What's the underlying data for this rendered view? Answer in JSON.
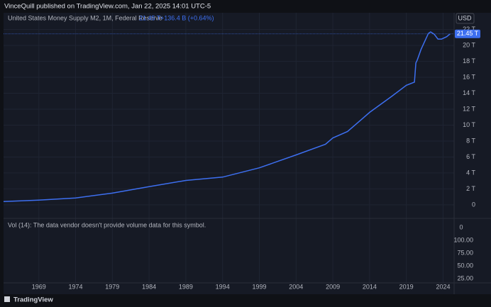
{
  "header": {
    "text": "VinceQuill published on TradingView.com, Jan 22, 2025 14:01 UTC-5"
  },
  "chart_data": {
    "type": "line",
    "currency": "USD",
    "legend": {
      "name": "United States Money Supply M2, 1M, Federal Reserve",
      "last": "21.45 T",
      "change": "+136.4 B (+0.64%)"
    },
    "x": [
      1964.2,
      1969,
      1974,
      1979,
      1984,
      1989,
      1994,
      1999,
      2004,
      2008,
      2009,
      2011,
      2014,
      2017,
      2019,
      2020.1,
      2020.3,
      2020.5,
      2021,
      2022.0,
      2022.3,
      2022.8,
      2023.3,
      2023.8,
      2024.5,
      2024.95
    ],
    "series": [
      {
        "name": "United States Money Supply M2, 1M, Federal Reserve",
        "color": "#3d6ff0",
        "values": [
          0.42,
          0.59,
          0.86,
          1.47,
          2.28,
          3.06,
          3.48,
          4.64,
          6.26,
          7.6,
          8.4,
          9.2,
          11.6,
          13.6,
          15.0,
          15.4,
          17.8,
          18.2,
          19.5,
          21.5,
          21.7,
          21.4,
          20.8,
          20.8,
          21.1,
          21.45
        ]
      }
    ],
    "last_price": {
      "value": 21.45,
      "label": "21.45 T"
    },
    "xlim": [
      1964.2,
      2025.5
    ],
    "xticks": [
      1969,
      1974,
      1979,
      1984,
      1989,
      1994,
      1999,
      2004,
      2009,
      2014,
      2019,
      2024
    ],
    "ylim": [
      -1.7,
      24.1
    ],
    "yticks": [
      0,
      {
        "value": 2,
        "label": "2 T"
      },
      {
        "value": 4,
        "label": "4 T"
      },
      {
        "value": 6,
        "label": "6 T"
      },
      {
        "value": 8,
        "label": "8 T"
      },
      {
        "value": 10,
        "label": "10 T"
      },
      {
        "value": 12,
        "label": "12 T"
      },
      {
        "value": 14,
        "label": "14 T"
      },
      {
        "value": 16,
        "label": "16 T"
      },
      {
        "value": 18,
        "label": "18 T"
      },
      {
        "value": 20,
        "label": "20 T"
      },
      {
        "value": 22,
        "label": "22 T"
      }
    ],
    "grid": true,
    "volume_note": "Vol (14): The data vendor doesn't provide volume data for this symbol.",
    "volume_axis_labels": [
      "0",
      "100.00",
      "75.00",
      "50.00",
      "25.00"
    ]
  },
  "footer": {
    "brand": "TradingView"
  }
}
